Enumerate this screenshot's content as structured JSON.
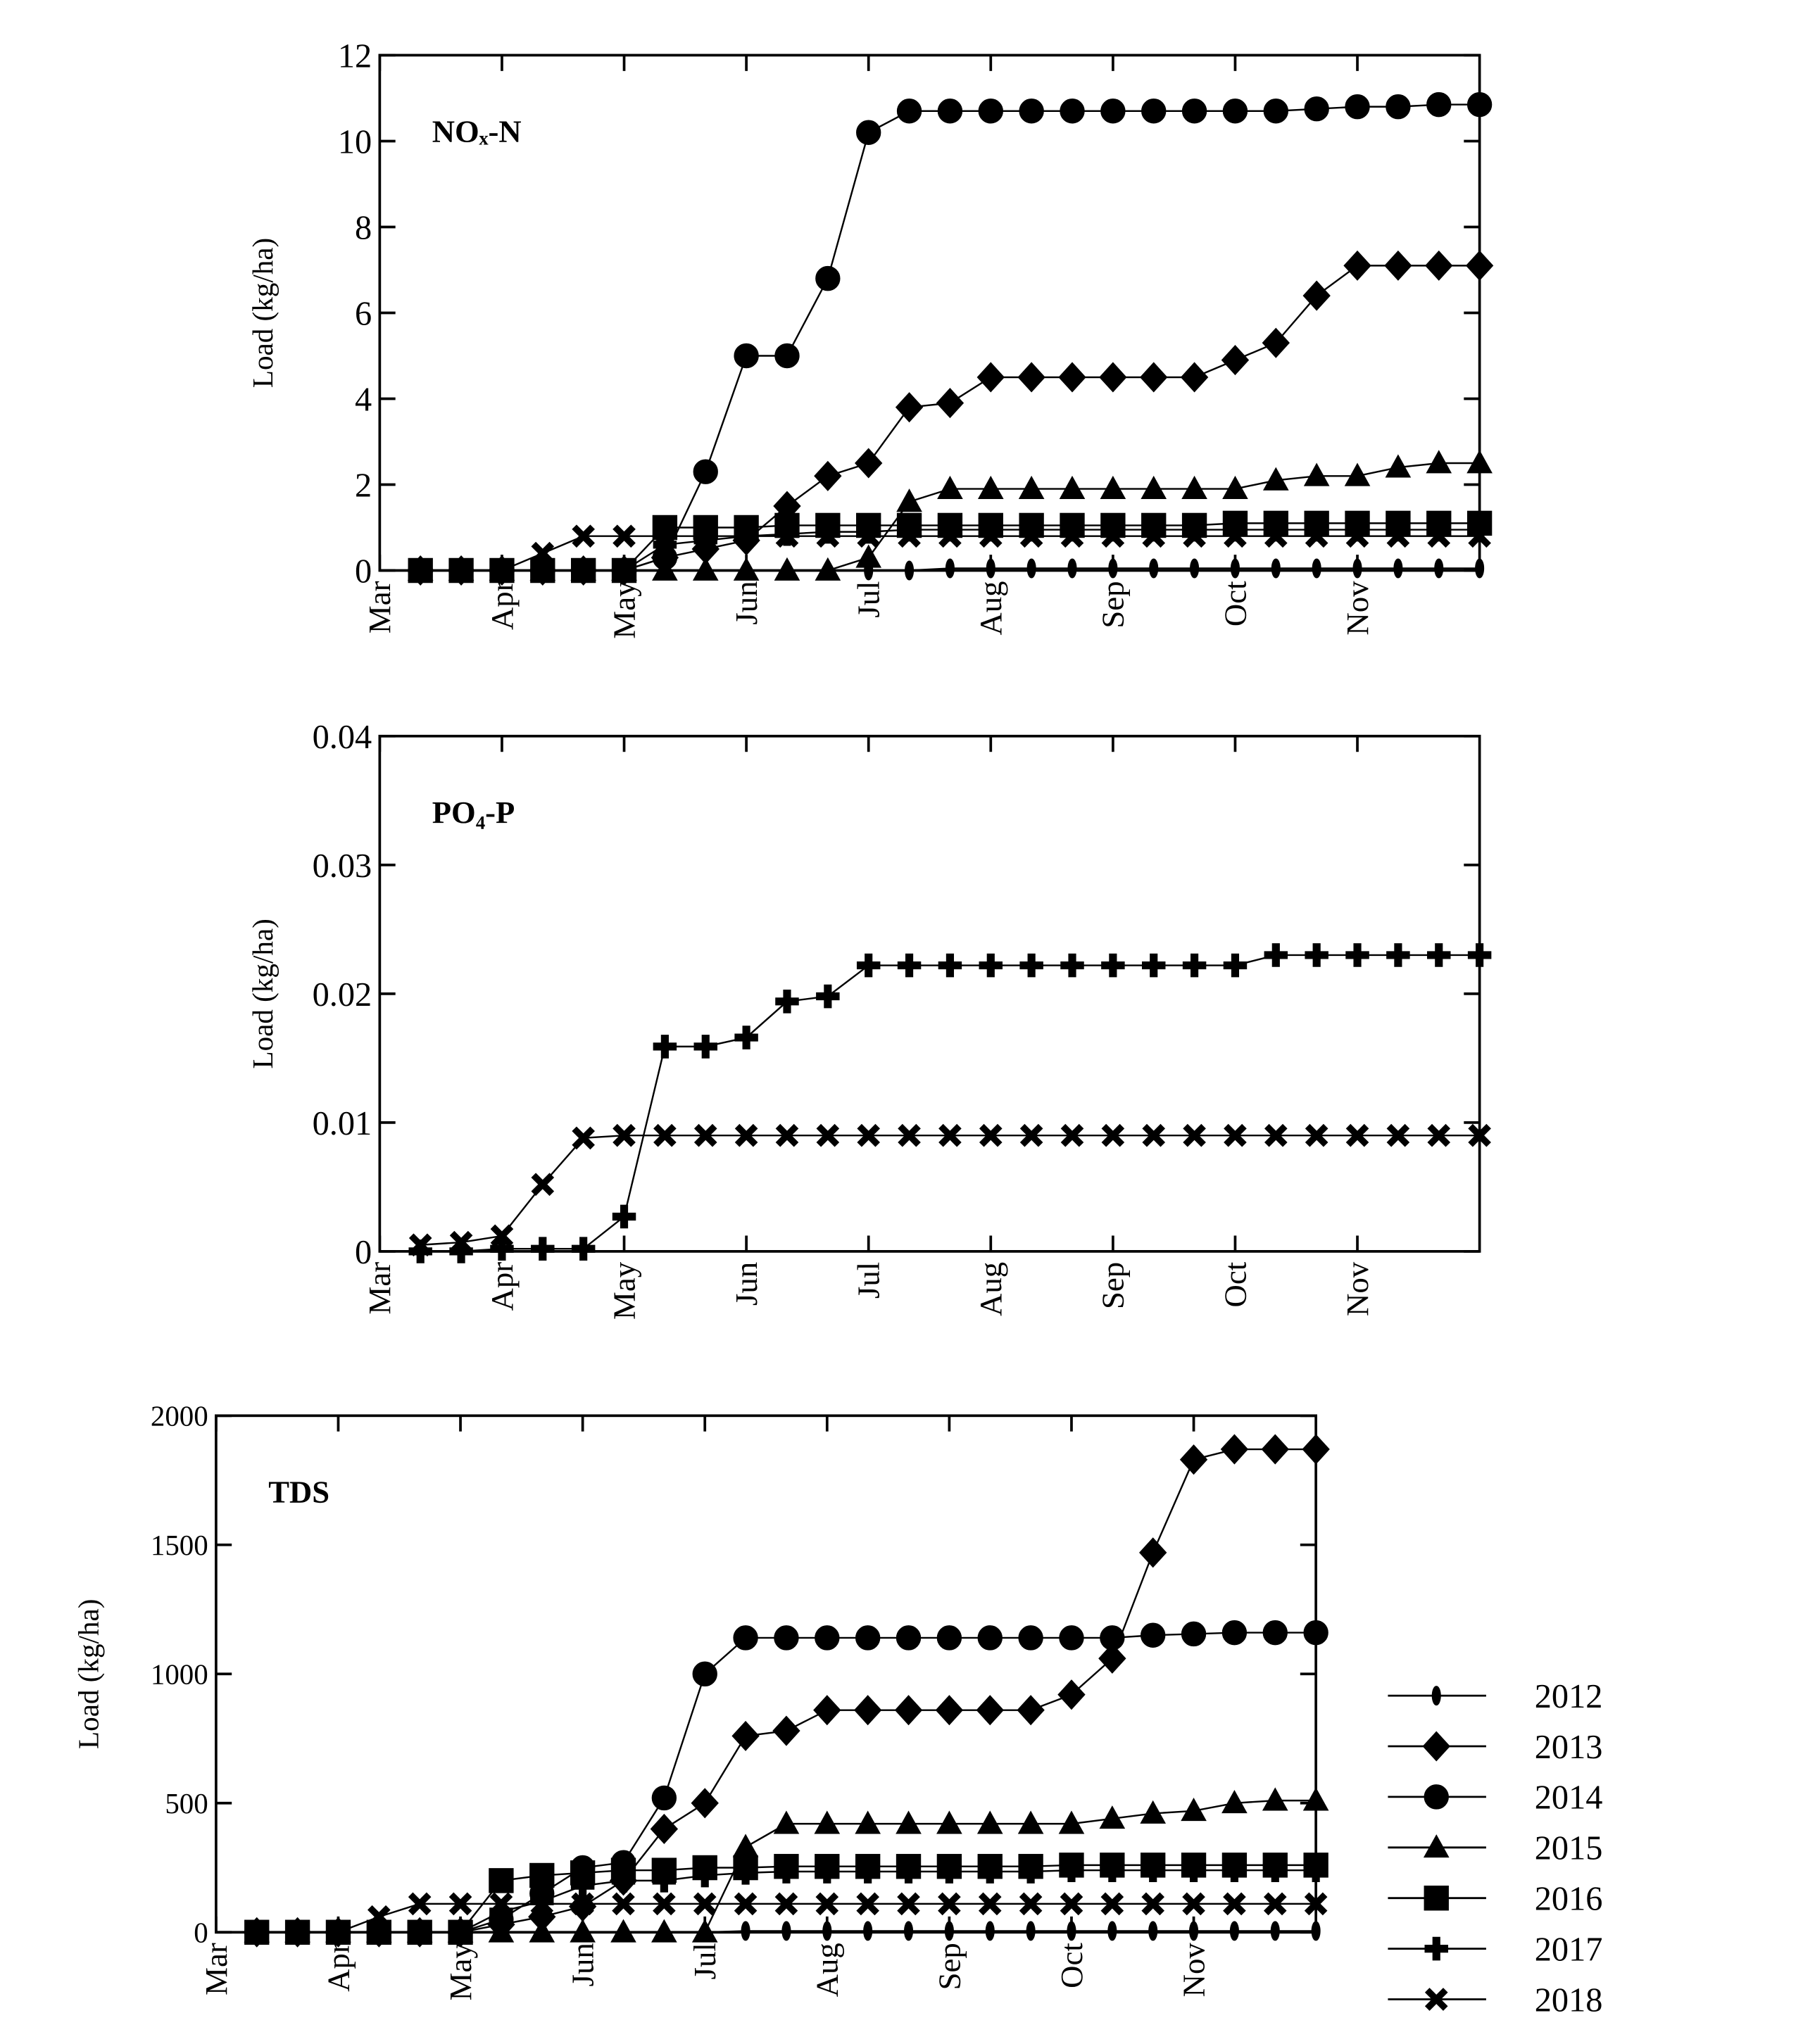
{
  "chart_data": [
    {
      "type": "line",
      "title": "NOₓ-N",
      "ylabel": "Load (kg/ha)",
      "categories": [
        "Mar",
        null,
        null,
        "Apr",
        null,
        null,
        "May",
        null,
        null,
        "Jun",
        null,
        null,
        "Jul",
        null,
        null,
        "Aug",
        null,
        null,
        "Sep",
        null,
        null,
        "Oct",
        null,
        null,
        "Nov",
        null,
        null
      ],
      "ylim": [
        0,
        12
      ],
      "yticks": [
        0,
        2,
        4,
        6,
        8,
        10,
        12
      ],
      "series": [
        {
          "name": "2012",
          "color": "#000000",
          "marker": "ellipse",
          "values": [
            0,
            0,
            0,
            0,
            0,
            0,
            0,
            0,
            0,
            0,
            0,
            0,
            0,
            0.05,
            0.05,
            0.05,
            0.05,
            0.05,
            0.05,
            0.05,
            0.05,
            0.05,
            0.05,
            0.05,
            0.05,
            0.05,
            0.05
          ]
        },
        {
          "name": "2013",
          "color": "#000000",
          "marker": "diamond",
          "values": [
            0,
            0,
            0,
            0,
            0,
            0,
            0.3,
            0.5,
            0.7,
            1.5,
            2.2,
            2.5,
            3.8,
            3.9,
            4.5,
            4.5,
            4.5,
            4.5,
            4.5,
            4.5,
            4.9,
            5.3,
            6.4,
            7.1,
            7.1,
            7.1,
            7.1
          ]
        },
        {
          "name": "2014",
          "color": "#000000",
          "marker": "circle",
          "values": [
            0,
            0,
            0,
            0,
            0,
            0,
            0.3,
            2.3,
            5.0,
            5.0,
            6.8,
            10.2,
            10.7,
            10.7,
            10.7,
            10.7,
            10.7,
            10.7,
            10.7,
            10.7,
            10.7,
            10.7,
            10.75,
            10.8,
            10.8,
            10.85,
            10.85
          ]
        },
        {
          "name": "2015",
          "color": "#000000",
          "marker": "triangle",
          "values": [
            0,
            0,
            0,
            0,
            0,
            0,
            0,
            0,
            0,
            0,
            0,
            0.3,
            1.6,
            1.9,
            1.9,
            1.9,
            1.9,
            1.9,
            1.9,
            1.9,
            1.9,
            2.1,
            2.2,
            2.2,
            2.4,
            2.5,
            2.5
          ]
        },
        {
          "name": "2016",
          "color": "#000000",
          "marker": "square",
          "values": [
            0,
            0,
            0,
            0,
            0,
            0,
            1.0,
            1.0,
            1.0,
            1.05,
            1.05,
            1.05,
            1.05,
            1.05,
            1.05,
            1.05,
            1.05,
            1.05,
            1.05,
            1.05,
            1.1,
            1.1,
            1.1,
            1.1,
            1.1,
            1.1,
            1.1
          ]
        },
        {
          "name": "2017",
          "color": "#000000",
          "marker": "plus",
          "values": [
            0,
            0,
            0,
            0,
            0,
            0,
            0.6,
            0.7,
            0.8,
            0.85,
            0.9,
            0.9,
            0.95,
            0.95,
            0.95,
            0.95,
            0.95,
            0.95,
            0.95,
            0.95,
            0.95,
            0.95,
            0.95,
            0.95,
            0.95,
            0.95,
            0.95
          ]
        },
        {
          "name": "2018",
          "color": "#000000",
          "marker": "x",
          "values": [
            0,
            0,
            0,
            0.4,
            0.8,
            0.8,
            0.8,
            0.8,
            0.8,
            0.8,
            0.8,
            0.8,
            0.8,
            0.8,
            0.8,
            0.8,
            0.8,
            0.8,
            0.8,
            0.8,
            0.8,
            0.8,
            0.8,
            0.8,
            0.8,
            0.8,
            0.8
          ]
        }
      ]
    },
    {
      "type": "line",
      "title": "PO₄-P",
      "ylabel": "Load (kg/ha)",
      "categories": [
        "Mar",
        null,
        null,
        "Apr",
        null,
        null,
        "May",
        null,
        null,
        "Jun",
        null,
        null,
        "Jul",
        null,
        null,
        "Aug",
        null,
        null,
        "Sep",
        null,
        null,
        "Oct",
        null,
        null,
        "Nov",
        null,
        null
      ],
      "ylim": [
        0,
        0.04
      ],
      "yticks": [
        0,
        0.01,
        0.02,
        0.03,
        0.04
      ],
      "series": [
        {
          "name": "2017",
          "color": "#000000",
          "marker": "plus",
          "values": [
            0,
            0,
            0.0002,
            0.0002,
            0.0002,
            0.0027,
            0.0159,
            0.0159,
            0.0166,
            0.0194,
            0.0198,
            0.0222,
            0.0222,
            0.0222,
            0.0222,
            0.0222,
            0.0222,
            0.0222,
            0.0222,
            0.0222,
            0.0222,
            0.023,
            0.023,
            0.023,
            0.023,
            0.023,
            0.023
          ]
        },
        {
          "name": "2018",
          "color": "#000000",
          "marker": "x",
          "values": [
            0.0005,
            0.0007,
            0.0012,
            0.0052,
            0.0088,
            0.009,
            0.009,
            0.009,
            0.009,
            0.009,
            0.009,
            0.009,
            0.009,
            0.009,
            0.009,
            0.009,
            0.009,
            0.009,
            0.009,
            0.009,
            0.009,
            0.009,
            0.009,
            0.009,
            0.009,
            0.009,
            0.009
          ]
        }
      ]
    },
    {
      "type": "line",
      "title": "TDS",
      "ylabel": "Load (kg/ha)",
      "legend": true,
      "categories": [
        "Mar",
        null,
        null,
        "Apr",
        null,
        null,
        "May",
        null,
        null,
        "Jun",
        null,
        null,
        "Jul",
        null,
        null,
        "Aug",
        null,
        null,
        "Sep",
        null,
        null,
        "Oct",
        null,
        null,
        "Nov",
        null,
        null
      ],
      "ylim": [
        0,
        2000
      ],
      "yticks": [
        0,
        500,
        1000,
        1500,
        2000
      ],
      "series": [
        {
          "name": "2012",
          "color": "#000000",
          "marker": "ellipse",
          "values": [
            0,
            0,
            0,
            0,
            0,
            0,
            0,
            0,
            0,
            0,
            0,
            0,
            5,
            5,
            5,
            5,
            5,
            5,
            5,
            5,
            5,
            5,
            5,
            5,
            5,
            5,
            5
          ]
        },
        {
          "name": "2013",
          "color": "#000000",
          "marker": "diamond",
          "values": [
            0,
            0,
            0,
            0,
            0,
            0,
            30,
            60,
            100,
            200,
            400,
            500,
            760,
            780,
            860,
            860,
            860,
            860,
            860,
            860,
            920,
            1060,
            1470,
            1830,
            1870,
            1870,
            1870
          ]
        },
        {
          "name": "2014",
          "color": "#000000",
          "marker": "circle",
          "values": [
            0,
            0,
            0,
            0,
            0,
            0,
            50,
            150,
            250,
            270,
            520,
            1000,
            1140,
            1140,
            1140,
            1140,
            1140,
            1140,
            1140,
            1140,
            1140,
            1140,
            1150,
            1155,
            1160,
            1160,
            1160
          ]
        },
        {
          "name": "2015",
          "color": "#000000",
          "marker": "triangle",
          "values": [
            0,
            0,
            0,
            0,
            0,
            0,
            0,
            0,
            0,
            0,
            0,
            0,
            330,
            420,
            420,
            420,
            420,
            420,
            420,
            420,
            420,
            440,
            460,
            470,
            500,
            510,
            510
          ]
        },
        {
          "name": "2016",
          "color": "#000000",
          "marker": "square",
          "values": [
            0,
            0,
            0,
            0,
            0,
            0,
            200,
            220,
            230,
            240,
            240,
            250,
            250,
            255,
            255,
            255,
            255,
            255,
            255,
            255,
            260,
            260,
            260,
            260,
            260,
            260,
            260
          ]
        },
        {
          "name": "2017",
          "color": "#000000",
          "marker": "plus",
          "values": [
            0,
            0,
            0,
            0,
            0,
            0,
            80,
            120,
            180,
            200,
            200,
            220,
            230,
            235,
            235,
            235,
            235,
            235,
            235,
            235,
            240,
            240,
            240,
            240,
            240,
            240,
            240
          ]
        },
        {
          "name": "2018",
          "color": "#000000",
          "marker": "x",
          "values": [
            0,
            0,
            0,
            60,
            110,
            110,
            110,
            110,
            110,
            110,
            110,
            110,
            110,
            110,
            110,
            110,
            110,
            110,
            110,
            110,
            110,
            110,
            110,
            110,
            110,
            110,
            110
          ]
        }
      ]
    }
  ]
}
